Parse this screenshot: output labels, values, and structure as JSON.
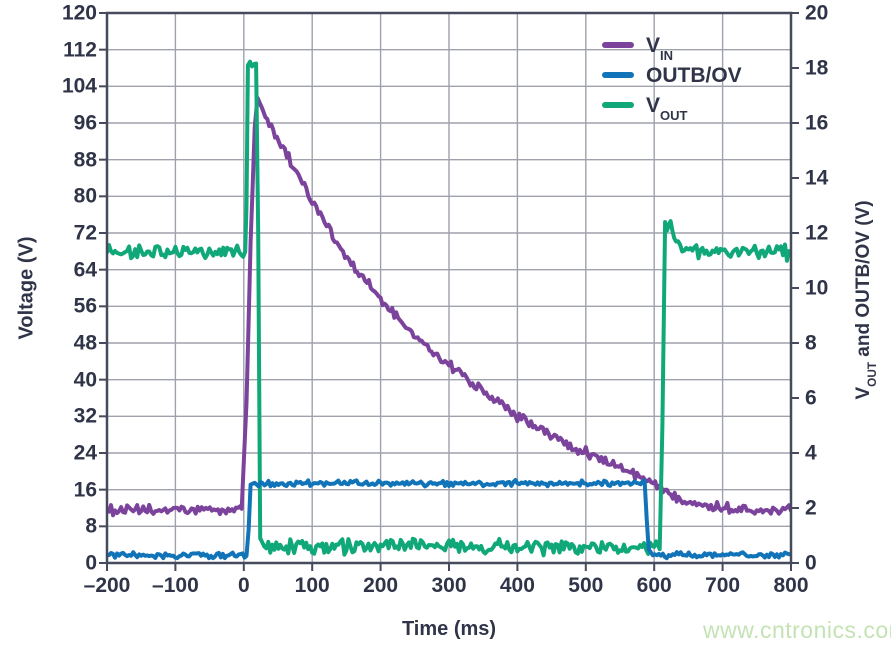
{
  "watermark": {
    "text": "www.cntronics.com",
    "color": "#c3e3b4"
  },
  "colors": {
    "text": "#303448",
    "grid": "#9fa1ac",
    "border": "#454a5c",
    "vin": "#7b439b",
    "outb": "#1173b8",
    "vout": "#10a878",
    "background": "#ffffff"
  },
  "legend": {
    "items": [
      {
        "label": "V_{IN}",
        "color": "#7b439b"
      },
      {
        "label": "OUTB/OV",
        "color": "#1173b8"
      },
      {
        "label": "V_{OUT}",
        "color": "#10a878"
      }
    ]
  },
  "chart_data": {
    "type": "line",
    "title": "",
    "grid": true,
    "legend_position": "top-right",
    "x_axis": {
      "label": "Time (ms)",
      "range": [
        -200,
        800
      ],
      "tick_values": [
        -200,
        -100,
        0,
        100,
        200,
        300,
        400,
        500,
        600,
        700,
        800
      ],
      "tick_labels": [
        "–200",
        "–100",
        "0",
        "100",
        "200",
        "300",
        "400",
        "500",
        "600",
        "700",
        "800"
      ]
    },
    "left_axis": {
      "label": "Voltage (V)",
      "range": [
        0,
        120
      ],
      "tick_values": [
        0,
        8,
        16,
        24,
        32,
        40,
        48,
        56,
        64,
        72,
        80,
        88,
        96,
        104,
        112,
        120
      ],
      "tick_labels": [
        "0",
        "8",
        "16",
        "24",
        "32",
        "40",
        "48",
        "56",
        "64",
        "72",
        "80",
        "88",
        "96",
        "104",
        "112",
        "120"
      ]
    },
    "right_axis": {
      "label": "V_{OUT} and OUTB/OV (V)",
      "range": [
        0,
        20
      ],
      "tick_values": [
        0,
        2,
        4,
        6,
        8,
        10,
        12,
        14,
        16,
        18,
        20
      ],
      "tick_labels": [
        "0",
        "2",
        "4",
        "6",
        "8",
        "10",
        "12",
        "14",
        "16",
        "18",
        "20"
      ]
    },
    "series": [
      {
        "name": "V_{IN}",
        "color": "#7b439b",
        "axis": "left",
        "noise": 1.3,
        "points": [
          [
            -200,
            11.5
          ],
          [
            -100,
            11.5
          ],
          [
            -20,
            11.5
          ],
          [
            -3,
            12
          ],
          [
            4,
            35
          ],
          [
            10,
            70
          ],
          [
            16,
            95
          ],
          [
            20,
            101.5
          ],
          [
            26,
            99.5
          ],
          [
            40,
            95
          ],
          [
            60,
            90
          ],
          [
            80,
            84.5
          ],
          [
            100,
            79
          ],
          [
            130,
            71.5
          ],
          [
            160,
            64.5
          ],
          [
            200,
            57.5
          ],
          [
            240,
            51
          ],
          [
            280,
            45.5
          ],
          [
            320,
            41
          ],
          [
            360,
            36.5
          ],
          [
            400,
            32
          ],
          [
            440,
            28.5
          ],
          [
            480,
            25.5
          ],
          [
            520,
            22.8
          ],
          [
            560,
            20.3
          ],
          [
            590,
            17.8
          ],
          [
            610,
            16.3
          ],
          [
            630,
            14.8
          ],
          [
            650,
            13.6
          ],
          [
            680,
            12.5
          ],
          [
            710,
            11.9
          ],
          [
            750,
            11.7
          ],
          [
            800,
            11.7
          ]
        ]
      },
      {
        "name": "V_{OUT}",
        "color": "#10a878",
        "axis": "right",
        "noise": 0.32,
        "points": [
          [
            -200,
            11.3
          ],
          [
            -100,
            11.3
          ],
          [
            2,
            11.3
          ],
          [
            4,
            13
          ],
          [
            6,
            18.1
          ],
          [
            18,
            18.2
          ],
          [
            21,
            12
          ],
          [
            24,
            0.9
          ],
          [
            30,
            0.6
          ],
          [
            100,
            0.6
          ],
          [
            300,
            0.6
          ],
          [
            500,
            0.58
          ],
          [
            600,
            0.55
          ],
          [
            608,
            0.55
          ],
          [
            612,
            5
          ],
          [
            616,
            12.4
          ],
          [
            624,
            12.3
          ],
          [
            632,
            11.6
          ],
          [
            650,
            11.4
          ],
          [
            700,
            11.3
          ],
          [
            800,
            11.3
          ]
        ]
      },
      {
        "name": "OUTB/OV",
        "color": "#1173b8",
        "axis": "right",
        "noise": 0.13,
        "points": [
          [
            -200,
            0.28
          ],
          [
            -100,
            0.28
          ],
          [
            4,
            0.28
          ],
          [
            7,
            1.2
          ],
          [
            10,
            2.85
          ],
          [
            100,
            2.9
          ],
          [
            300,
            2.9
          ],
          [
            500,
            2.9
          ],
          [
            586,
            2.9
          ],
          [
            589,
            1.6
          ],
          [
            592,
            0.5
          ],
          [
            598,
            0.28
          ],
          [
            700,
            0.3
          ],
          [
            800,
            0.28
          ]
        ]
      }
    ]
  }
}
